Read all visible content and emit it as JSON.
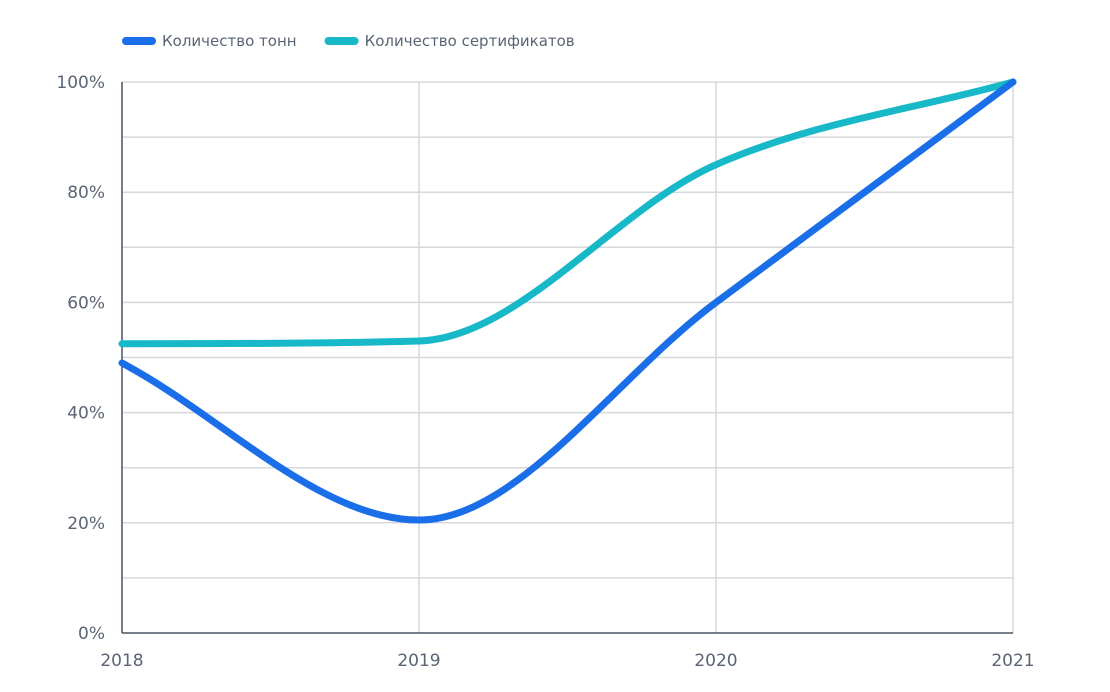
{
  "chart_data": {
    "type": "line",
    "title": "",
    "xlabel": "",
    "ylabel": "",
    "x": [
      "2018",
      "2019",
      "2020",
      "2021"
    ],
    "y_ticks": [
      "0%",
      "20%",
      "40%",
      "60%",
      "80%",
      "100%"
    ],
    "ylim": [
      0,
      100
    ],
    "y_unit": "%",
    "grid": true,
    "smooth": true,
    "legend_position": "top-left",
    "series": [
      {
        "name": "Количество тонн",
        "color": "#1a6fe8",
        "values": [
          49,
          20.5,
          60,
          100
        ]
      },
      {
        "name": "Количество сертификатов",
        "color": "#17b8c8",
        "values": [
          52.5,
          53,
          85,
          100
        ]
      }
    ]
  }
}
